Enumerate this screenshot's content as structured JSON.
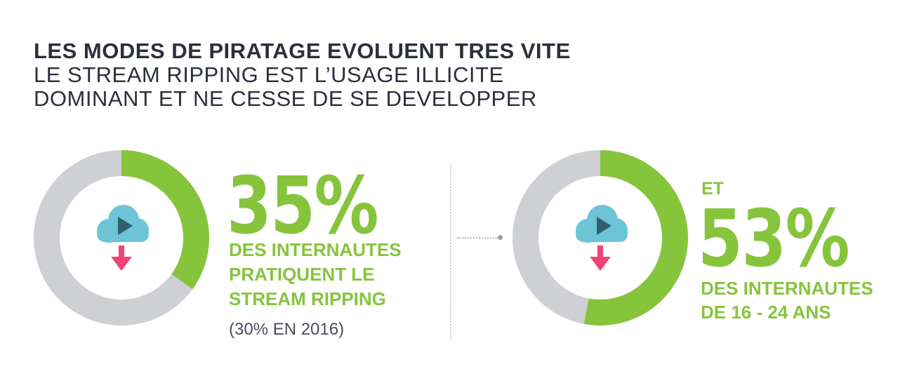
{
  "title": {
    "line1": "LES MODES DE PIRATAGE EVOLUENT TRES VITE",
    "line2": "LE STREAM RIPPING EST L’USAGE ILLICITE",
    "line3": "DOMINANT ET NE CESSE DE SE DEVELOPPER"
  },
  "colors": {
    "accent": "#86c43c",
    "track": "#cfd0d4",
    "cloud": "#6cc4d6",
    "play": "#2f5f6e",
    "arrow": "#f04377",
    "title": "#2b2f3d",
    "note": "#4b4a63"
  },
  "left_stat": {
    "value": "35%",
    "desc_line1": "DES INTERNAUTES",
    "desc_line2": "PRATIQUENT LE",
    "desc_line3": "STREAM RIPPING",
    "note": "(30% EN 2016)"
  },
  "right_stat": {
    "prefix": "ET",
    "value": "53%",
    "desc_line1": "DES INTERNAUTES",
    "desc_line2": "DE 16 - 24 ANS"
  },
  "chart_data": [
    {
      "type": "pie",
      "style": "donut",
      "values": [
        35,
        65
      ],
      "colors": [
        "#86c43c",
        "#cfd0d4"
      ],
      "title": ""
    },
    {
      "type": "pie",
      "style": "donut",
      "values": [
        53,
        47
      ],
      "colors": [
        "#86c43c",
        "#cfd0d4"
      ],
      "title": ""
    }
  ],
  "icons": [
    "cloud-play-icon",
    "download-arrow-icon"
  ]
}
